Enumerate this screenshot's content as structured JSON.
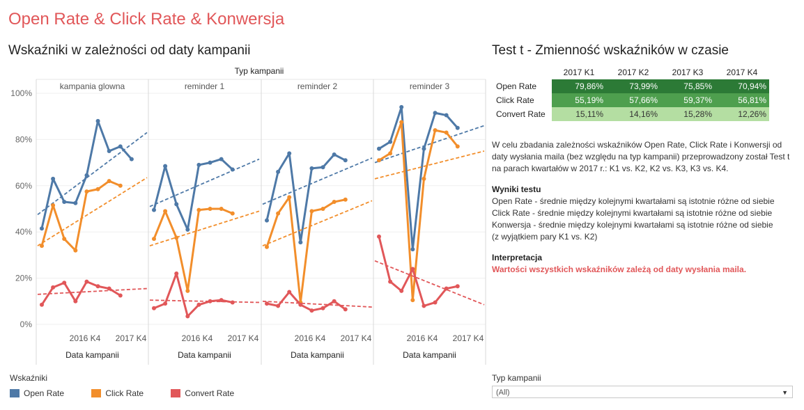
{
  "header": {
    "main_title": "Open Rate & Click Rate & Konwersja",
    "left_title": "Wskaźniki w zależności od daty kampanii",
    "right_title": "Test t - Zmienność wskaźników w czasie"
  },
  "chart_data": {
    "type": "line",
    "column_header": "Typ kampanii",
    "panels": [
      "kampania glowna",
      "reminder 1",
      "reminder 2",
      "reminder 3"
    ],
    "xlabel": "Data kampanii",
    "x_ticks": [
      "2016 K4",
      "2017 K4"
    ],
    "y_ticks": [
      "100%",
      "80%",
      "60%",
      "40%",
      "20%",
      "0%"
    ],
    "ylim": [
      0,
      100
    ],
    "colors": {
      "Open Rate": "#4e79a7",
      "Click Rate": "#f28e2b",
      "Convert Rate": "#e15759"
    },
    "series": [
      {
        "name": "Open Rate",
        "trend": true,
        "panels": [
          {
            "x": [
              0,
              1,
              2,
              3,
              4,
              5,
              6,
              7,
              8,
              9
            ],
            "y": [
              41.5,
              63,
              53,
              52.5,
              64.5,
              88,
              75,
              77,
              71.5,
              null
            ]
          },
          {
            "x": [
              0,
              1,
              2,
              3,
              4,
              5,
              6,
              7,
              8,
              9
            ],
            "y": [
              49.5,
              68.5,
              52,
              41,
              69,
              70,
              71.5,
              67,
              null,
              null
            ]
          },
          {
            "x": [
              0,
              1,
              2,
              3,
              4,
              5,
              6,
              7,
              8,
              9
            ],
            "y": [
              45,
              66,
              74,
              35.5,
              67.5,
              68,
              73.5,
              71,
              null,
              null
            ]
          },
          {
            "x": [
              0,
              1,
              2,
              3,
              4,
              5,
              6,
              7,
              8,
              9
            ],
            "y": [
              76,
              79,
              94,
              32.5,
              76,
              91.5,
              90.5,
              85,
              null,
              null
            ]
          }
        ],
        "trend_lines": [
          [
            47.5,
            83
          ],
          [
            51,
            71.5
          ],
          [
            52,
            72
          ],
          [
            70,
            86
          ]
        ]
      },
      {
        "name": "Click Rate",
        "trend": true,
        "panels": [
          {
            "x": [
              0,
              1,
              2,
              3,
              4,
              5,
              6,
              7,
              8,
              9
            ],
            "y": [
              34,
              51.5,
              37,
              32,
              57.5,
              58.5,
              62,
              60,
              null,
              null
            ]
          },
          {
            "x": [
              0,
              1,
              2,
              3,
              4,
              5,
              6,
              7,
              8,
              9
            ],
            "y": [
              37,
              49,
              37.5,
              14.5,
              49.5,
              50,
              50,
              48,
              null,
              null
            ]
          },
          {
            "x": [
              0,
              1,
              2,
              3,
              4,
              5,
              6,
              7,
              8,
              9
            ],
            "y": [
              33.5,
              48,
              55,
              9.5,
              49,
              50,
              53,
              54,
              null,
              null
            ]
          },
          {
            "x": [
              0,
              1,
              2,
              3,
              4,
              5,
              6,
              7,
              8,
              9
            ],
            "y": [
              71,
              74,
              87.5,
              10.5,
              63,
              84,
              83,
              77,
              null,
              null
            ]
          }
        ],
        "trend_lines": [
          [
            34,
            63.5
          ],
          [
            34,
            49
          ],
          [
            34,
            53.5
          ],
          [
            63,
            75
          ]
        ]
      },
      {
        "name": "Convert Rate",
        "trend": true,
        "panels": [
          {
            "x": [
              0,
              1,
              2,
              3,
              4,
              5,
              6,
              7,
              8,
              9
            ],
            "y": [
              8.5,
              16,
              18,
              10,
              18.5,
              16.5,
              15.5,
              12.5,
              null,
              null
            ]
          },
          {
            "x": [
              0,
              1,
              2,
              3,
              4,
              5,
              6,
              7,
              8,
              9
            ],
            "y": [
              7,
              9,
              22,
              3.5,
              8.5,
              10,
              10.5,
              9.5,
              null,
              null
            ]
          },
          {
            "x": [
              0,
              1,
              2,
              3,
              4,
              5,
              6,
              7,
              8,
              9
            ],
            "y": [
              9,
              8,
              14,
              8.5,
              6,
              7,
              10,
              6.5,
              null,
              null
            ]
          },
          {
            "x": [
              0,
              1,
              2,
              3,
              4,
              5,
              6,
              7,
              8,
              9
            ],
            "y": [
              38,
              18.5,
              14.5,
              24,
              8,
              9.5,
              15.5,
              16.5,
              null,
              null
            ]
          }
        ],
        "trend_lines": [
          [
            13,
            15.5
          ],
          [
            10.5,
            9.5
          ],
          [
            10,
            7.5
          ],
          [
            27.5,
            8.5
          ]
        ]
      }
    ]
  },
  "ttest": {
    "columns": [
      "2017 K1",
      "2017 K2",
      "2017 K3",
      "2017 K4"
    ],
    "rows": [
      {
        "label": "Open Rate",
        "values": [
          "79,86%",
          "73,99%",
          "75,85%",
          "70,94%"
        ],
        "colors": [
          "#2c7a36",
          "#2c7a36",
          "#2c7a36",
          "#2c7a36"
        ],
        "text_color": "#ffffff"
      },
      {
        "label": "Click Rate",
        "values": [
          "55,19%",
          "57,66%",
          "59,37%",
          "56,81%"
        ],
        "colors": [
          "#4e9f4e",
          "#4e9f4e",
          "#4e9f4e",
          "#4e9f4e"
        ],
        "text_color": "#ffffff"
      },
      {
        "label": "Convert Rate",
        "values": [
          "15,11%",
          "14,16%",
          "15,28%",
          "12,26%"
        ],
        "colors": [
          "#b4dea2",
          "#b4dea2",
          "#b4dea2",
          "#b4dea2"
        ],
        "text_color": "#333333"
      }
    ]
  },
  "description": {
    "intro": "W celu zbadania zależności wskaźników Open Rate, Click Rate i Konwersji od daty wysłania maila (bez względu na typ kampanii) przeprowadzony został Test t na parach kwartałów w 2017 r.: K1 vs. K2, K2 vs. K3, K3 vs. K4.",
    "results_head": "Wyniki testu",
    "results_1": "Open Rate - średnie między kolejnymi kwartałami są istotnie różne od siebie",
    "results_2": "Click Rate - średnie między kolejnymi kwartałami są istotnie różne od siebie",
    "results_3": "Konwersja - średnie między kolejnymi kwartałami są istotnie różne od siebie",
    "results_4": "(z wyjątkiem pary K1 vs. K2)",
    "interp_head": "Interpretacja",
    "interp_text": "Wartości wszystkich wskaźników zależą od daty wysłania maila."
  },
  "legend": {
    "title": "Wskaźniki",
    "items": [
      {
        "label": "Open Rate",
        "color": "#4e79a7"
      },
      {
        "label": "Click Rate",
        "color": "#f28e2b"
      },
      {
        "label": "Convert Rate",
        "color": "#e15759"
      }
    ]
  },
  "filter": {
    "label": "Typ kampanii",
    "value": "(All)"
  }
}
